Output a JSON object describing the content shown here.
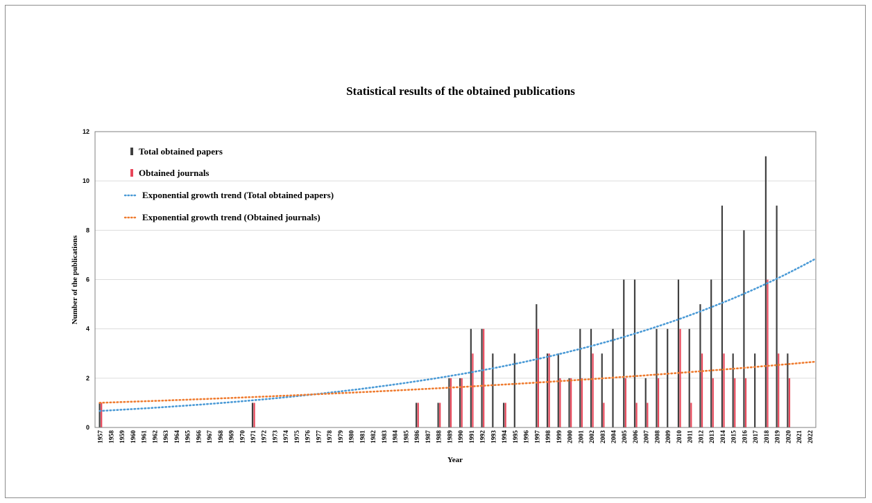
{
  "chart_data": {
    "type": "bar",
    "title": "Statistical results of the obtained publications",
    "xlabel": "Year",
    "ylabel": "Number of the publications",
    "ylim": [
      0,
      12
    ],
    "yticks": [
      "0",
      "2",
      "4",
      "6",
      "8",
      "10",
      "12"
    ],
    "grid": true,
    "legend_position": "top-left",
    "categories": [
      "1957",
      "1958",
      "1959",
      "1960",
      "1961",
      "1962",
      "1963",
      "1964",
      "1965",
      "1966",
      "1967",
      "1968",
      "1969",
      "1970",
      "1971",
      "1972",
      "1973",
      "1974",
      "1975",
      "1976",
      "1977",
      "1978",
      "1979",
      "1980",
      "1981",
      "1982",
      "1983",
      "1984",
      "1985",
      "1986",
      "1987",
      "1988",
      "1989",
      "1990",
      "1991",
      "1992",
      "1993",
      "1994",
      "1995",
      "1996",
      "1997",
      "1998",
      "1999",
      "2000",
      "2001",
      "2002",
      "2003",
      "2004",
      "2005",
      "2006",
      "2007",
      "2008",
      "2009",
      "2010",
      "2011",
      "2012",
      "2013",
      "2014",
      "2015",
      "2016",
      "2017",
      "2018",
      "2019",
      "2020",
      "2021",
      "2022"
    ],
    "series": [
      {
        "name": "Total obtained papers",
        "color": "#404040",
        "values": [
          1,
          0,
          0,
          0,
          0,
          0,
          0,
          0,
          0,
          0,
          0,
          0,
          0,
          0,
          1,
          0,
          0,
          0,
          0,
          0,
          0,
          0,
          0,
          0,
          0,
          0,
          0,
          0,
          0,
          1,
          0,
          1,
          2,
          2,
          4,
          4,
          3,
          1,
          3,
          0,
          5,
          3,
          3,
          2,
          4,
          4,
          3,
          4,
          6,
          6,
          2,
          4,
          4,
          6,
          4,
          5,
          6,
          9,
          3,
          8,
          3,
          11,
          9,
          3,
          0,
          0
        ]
      },
      {
        "name": "Obtained journals",
        "color": "#e8475a",
        "values": [
          1,
          0,
          0,
          0,
          0,
          0,
          0,
          0,
          0,
          0,
          0,
          0,
          0,
          0,
          1,
          0,
          0,
          0,
          0,
          0,
          0,
          0,
          0,
          0,
          0,
          0,
          0,
          0,
          0,
          1,
          0,
          1,
          2,
          2,
          3,
          4,
          0,
          1,
          0,
          0,
          4,
          3,
          2,
          2,
          2,
          3,
          1,
          0,
          2,
          1,
          1,
          2,
          0,
          4,
          1,
          3,
          2,
          3,
          2,
          2,
          0,
          6,
          3,
          2,
          0,
          0
        ]
      }
    ],
    "trendlines": [
      {
        "name": "Exponential growth trend (Total obtained papers)",
        "color": "#4a9ad6",
        "start_value": 0.67,
        "end_value": 6.85
      },
      {
        "name": "Exponential growth trend (Obtained journals)",
        "color": "#ef7b2f",
        "start_value": 1.0,
        "end_value": 2.67
      }
    ]
  }
}
